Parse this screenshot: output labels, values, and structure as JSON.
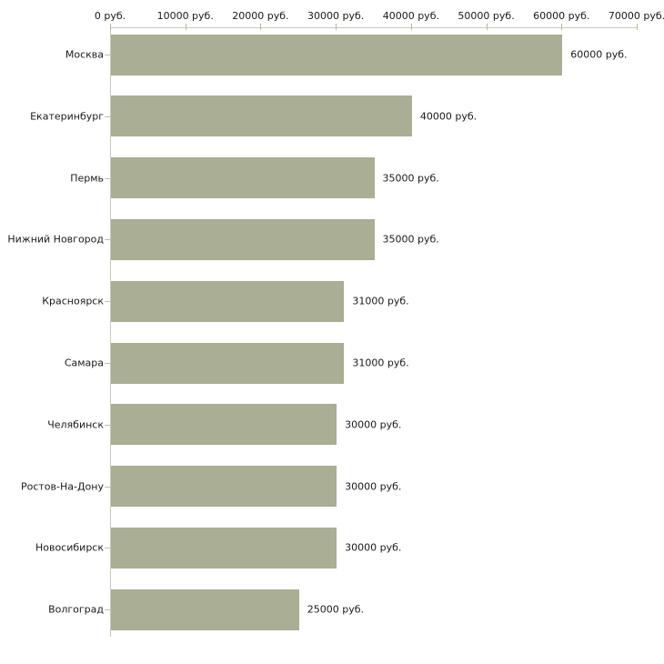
{
  "chart_data": {
    "type": "bar",
    "orientation": "horizontal",
    "title": "",
    "xlabel": "",
    "ylabel": "",
    "unit_suffix": " руб.",
    "categories": [
      "Москва",
      "Екатеринбург",
      "Пермь",
      "Нижний Новгород",
      "Красноярск",
      "Самара",
      "Челябинск",
      "Ростов-На-Дону",
      "Новосибирск",
      "Волгоград"
    ],
    "values": [
      60000,
      40000,
      35000,
      35000,
      31000,
      31000,
      30000,
      30000,
      30000,
      25000
    ],
    "value_labels": [
      "60000 руб.",
      "40000 руб.",
      "35000 руб.",
      "35000 руб.",
      "31000 руб.",
      "31000 руб.",
      "30000 руб.",
      "30000 руб.",
      "30000 руб.",
      "25000 руб."
    ],
    "x_axis": {
      "position": "top",
      "min": 0,
      "max": 70000,
      "tick_interval": 10000,
      "tick_labels": [
        "0 руб.",
        "10000 руб.",
        "20000 руб.",
        "30000 руб.",
        "40000 руб.",
        "50000 руб.",
        "60000 руб.",
        "70000 руб."
      ]
    },
    "grid": false,
    "legend": false,
    "colors": {
      "bar": "#a9ae94",
      "axis_line": "#c8c8c0",
      "x_tick": "#b9b88c",
      "y_tick": "#c3c19e",
      "text": "#1a1a1a",
      "background": "#ffffff"
    }
  }
}
